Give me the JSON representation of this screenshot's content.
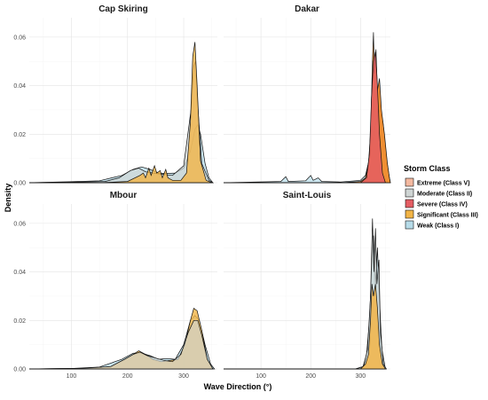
{
  "chart_data": {
    "type": "area",
    "title": "",
    "xlabel": "Wave Direction (°)",
    "ylabel": "Density",
    "xlim": [
      25,
      360
    ],
    "ylim": [
      0,
      0.068
    ],
    "x_ticks": [
      100,
      200,
      300
    ],
    "y_ticks": [
      0.0,
      0.02,
      0.04,
      0.06
    ],
    "y_tick_labels": [
      "0.00",
      "0.02",
      "0.04",
      "0.06"
    ],
    "grid": true,
    "legend": {
      "title": "Storm Class",
      "position": "right",
      "entries": [
        {
          "name": "Extreme (Class V)",
          "color": "#f4b9a0"
        },
        {
          "name": "Moderate (Class II)",
          "color": "#cfd5d4"
        },
        {
          "name": "Severe (Class IV)",
          "color": "#e45d63"
        },
        {
          "name": "Significant (Class III)",
          "color": "#f2b446"
        },
        {
          "name": "Weak (Class I)",
          "color": "#b6dbe8"
        }
      ]
    },
    "panels": [
      {
        "title": "Cap Skiring",
        "series": [
          {
            "name": "Weak (Class I)",
            "color": "#b6dbe8",
            "opacity": 0.75,
            "points": [
              [
                25,
                0
              ],
              [
                100,
                0.0004
              ],
              [
                150,
                0.0008
              ],
              [
                190,
                0.003
              ],
              [
                210,
                0.0055
              ],
              [
                225,
                0.0065
              ],
              [
                240,
                0.0055
              ],
              [
                255,
                0.004
              ],
              [
                270,
                0.0038
              ],
              [
                285,
                0.004
              ],
              [
                300,
                0.006
              ],
              [
                312,
                0.013
              ],
              [
                320,
                0.022
              ],
              [
                325,
                0.024
              ],
              [
                330,
                0.02
              ],
              [
                338,
                0.008
              ],
              [
                345,
                0.002
              ],
              [
                352,
                0
              ]
            ]
          },
          {
            "name": "Moderate (Class II)",
            "color": "#cfd5d4",
            "opacity": 0.7,
            "points": [
              [
                25,
                0
              ],
              [
                120,
                0.0003
              ],
              [
                160,
                0.0005
              ],
              [
                185,
                0.002
              ],
              [
                205,
                0.005
              ],
              [
                220,
                0.006
              ],
              [
                232,
                0.0045
              ],
              [
                245,
                0.004
              ],
              [
                260,
                0.0035
              ],
              [
                280,
                0.003
              ],
              [
                300,
                0.007
              ],
              [
                313,
                0.03
              ],
              [
                318,
                0.048
              ],
              [
                321,
                0.05
              ],
              [
                325,
                0.032
              ],
              [
                332,
                0.008
              ],
              [
                345,
                0.001
              ],
              [
                352,
                0
              ]
            ]
          },
          {
            "name": "Significant (Class III)",
            "color": "#f2b446",
            "opacity": 0.8,
            "points": [
              [
                25,
                0
              ],
              [
                150,
                0
              ],
              [
                200,
                0.0005
              ],
              [
                222,
                0.003
              ],
              [
                228,
                0.004
              ],
              [
                232,
                0.002
              ],
              [
                238,
                0.006
              ],
              [
                242,
                0.003
              ],
              [
                248,
                0.007
              ],
              [
                252,
                0.004
              ],
              [
                258,
                0.005
              ],
              [
                262,
                0.002
              ],
              [
                268,
                0.0055
              ],
              [
                272,
                0.002
              ],
              [
                280,
                0.001
              ],
              [
                295,
                0.001
              ],
              [
                305,
                0.004
              ],
              [
                312,
                0.025
              ],
              [
                316,
                0.052
              ],
              [
                320,
                0.058
              ],
              [
                324,
                0.04
              ],
              [
                330,
                0.009
              ],
              [
                340,
                0.001
              ],
              [
                350,
                0
              ]
            ]
          }
        ]
      },
      {
        "title": "Dakar",
        "series": [
          {
            "name": "Weak (Class I)",
            "color": "#b6dbe8",
            "opacity": 0.7,
            "points": [
              [
                25,
                0
              ],
              [
                140,
                0.0005
              ],
              [
                150,
                0.0025
              ],
              [
                155,
                0.0005
              ],
              [
                190,
                0.0008
              ],
              [
                200,
                0.003
              ],
              [
                205,
                0.001
              ],
              [
                215,
                0.002
              ],
              [
                222,
                0.0005
              ],
              [
                260,
                0.0003
              ],
              [
                300,
                0.001
              ],
              [
                310,
                0.003
              ],
              [
                320,
                0.012
              ],
              [
                330,
                0.024
              ],
              [
                338,
                0.03
              ],
              [
                345,
                0.025
              ],
              [
                352,
                0.01
              ],
              [
                358,
                0.002
              ],
              [
                360,
                0
              ]
            ]
          },
          {
            "name": "Significant (Class III)",
            "color": "#f08a28",
            "opacity": 0.95,
            "points": [
              [
                25,
                0
              ],
              [
                260,
                0
              ],
              [
                300,
                0.0005
              ],
              [
                310,
                0.002
              ],
              [
                316,
                0.008
              ],
              [
                320,
                0.02
              ],
              [
                324,
                0.05
              ],
              [
                326,
                0.062
              ],
              [
                328,
                0.045
              ],
              [
                331,
                0.055
              ],
              [
                334,
                0.038
              ],
              [
                338,
                0.043
              ],
              [
                342,
                0.03
              ],
              [
                348,
                0.02
              ],
              [
                354,
                0.008
              ],
              [
                358,
                0.002
              ],
              [
                360,
                0
              ]
            ]
          },
          {
            "name": "Severe (Class IV)",
            "color": "#e45d63",
            "opacity": 0.85,
            "points": [
              [
                25,
                0
              ],
              [
                300,
                0
              ],
              [
                312,
                0.002
              ],
              [
                318,
                0.012
              ],
              [
                322,
                0.035
              ],
              [
                326,
                0.05
              ],
              [
                330,
                0.054
              ],
              [
                334,
                0.04
              ],
              [
                338,
                0.02
              ],
              [
                344,
                0.004
              ],
              [
                350,
                0
              ]
            ]
          }
        ]
      },
      {
        "title": "Mbour",
        "series": [
          {
            "name": "Weak (Class I)",
            "color": "#b6dbe8",
            "opacity": 0.75,
            "points": [
              [
                25,
                0
              ],
              [
                100,
                0.0002
              ],
              [
                150,
                0.0008
              ],
              [
                190,
                0.004
              ],
              [
                210,
                0.0065
              ],
              [
                225,
                0.0065
              ],
              [
                240,
                0.0055
              ],
              [
                255,
                0.004
              ],
              [
                270,
                0.0043
              ],
              [
                285,
                0.004
              ],
              [
                300,
                0.01
              ],
              [
                312,
                0.02
              ],
              [
                320,
                0.022
              ],
              [
                328,
                0.02
              ],
              [
                338,
                0.01
              ],
              [
                348,
                0.002
              ],
              [
                355,
                0
              ]
            ]
          },
          {
            "name": "Significant (Class III)",
            "color": "#f2b446",
            "opacity": 0.8,
            "points": [
              [
                25,
                0
              ],
              [
                120,
                0.0002
              ],
              [
                170,
                0.001
              ],
              [
                195,
                0.004
              ],
              [
                210,
                0.006
              ],
              [
                220,
                0.0075
              ],
              [
                232,
                0.006
              ],
              [
                245,
                0.004
              ],
              [
                260,
                0.003
              ],
              [
                275,
                0.0035
              ],
              [
                290,
                0.004
              ],
              [
                302,
                0.01
              ],
              [
                312,
                0.02
              ],
              [
                318,
                0.025
              ],
              [
                324,
                0.024
              ],
              [
                332,
                0.016
              ],
              [
                342,
                0.004
              ],
              [
                352,
                0
              ]
            ]
          },
          {
            "name": "Moderate (Class II)",
            "color": "#cfd5d4",
            "opacity": 0.65,
            "points": [
              [
                25,
                0
              ],
              [
                120,
                0.0003
              ],
              [
                170,
                0.001
              ],
              [
                195,
                0.004
              ],
              [
                210,
                0.006
              ],
              [
                222,
                0.007
              ],
              [
                235,
                0.0055
              ],
              [
                250,
                0.0045
              ],
              [
                265,
                0.0035
              ],
              [
                280,
                0.003
              ],
              [
                295,
                0.006
              ],
              [
                308,
                0.015
              ],
              [
                318,
                0.02
              ],
              [
                325,
                0.02
              ],
              [
                332,
                0.014
              ],
              [
                342,
                0.004
              ],
              [
                352,
                0
              ]
            ]
          }
        ]
      },
      {
        "title": "Saint-Louis",
        "series": [
          {
            "name": "Weak (Class I)",
            "color": "#b6dbe8",
            "opacity": 0.7,
            "points": [
              [
                25,
                0
              ],
              [
                290,
                0
              ],
              [
                305,
                0.001
              ],
              [
                312,
                0.006
              ],
              [
                318,
                0.02
              ],
              [
                322,
                0.04
              ],
              [
                326,
                0.055
              ],
              [
                330,
                0.035
              ],
              [
                334,
                0.05
              ],
              [
                338,
                0.028
              ],
              [
                343,
                0.008
              ],
              [
                350,
                0
              ]
            ]
          },
          {
            "name": "Moderate (Class II)",
            "color": "#cfd5d4",
            "opacity": 0.7,
            "points": [
              [
                25,
                0
              ],
              [
                290,
                0
              ],
              [
                306,
                0.001
              ],
              [
                314,
                0.008
              ],
              [
                320,
                0.03
              ],
              [
                324,
                0.062
              ],
              [
                327,
                0.04
              ],
              [
                330,
                0.058
              ],
              [
                333,
                0.035
              ],
              [
                337,
                0.045
              ],
              [
                340,
                0.015
              ],
              [
                346,
                0.002
              ],
              [
                352,
                0
              ]
            ]
          },
          {
            "name": "Significant (Class III)",
            "color": "#f2b446",
            "opacity": 0.85,
            "points": [
              [
                25,
                0
              ],
              [
                300,
                0
              ],
              [
                310,
                0.002
              ],
              [
                316,
                0.006
              ],
              [
                320,
                0.02
              ],
              [
                323,
                0.035
              ],
              [
                326,
                0.03
              ],
              [
                330,
                0.035
              ],
              [
                334,
                0.025
              ],
              [
                338,
                0.01
              ],
              [
                344,
                0.002
              ],
              [
                350,
                0
              ]
            ]
          }
        ]
      }
    ]
  }
}
